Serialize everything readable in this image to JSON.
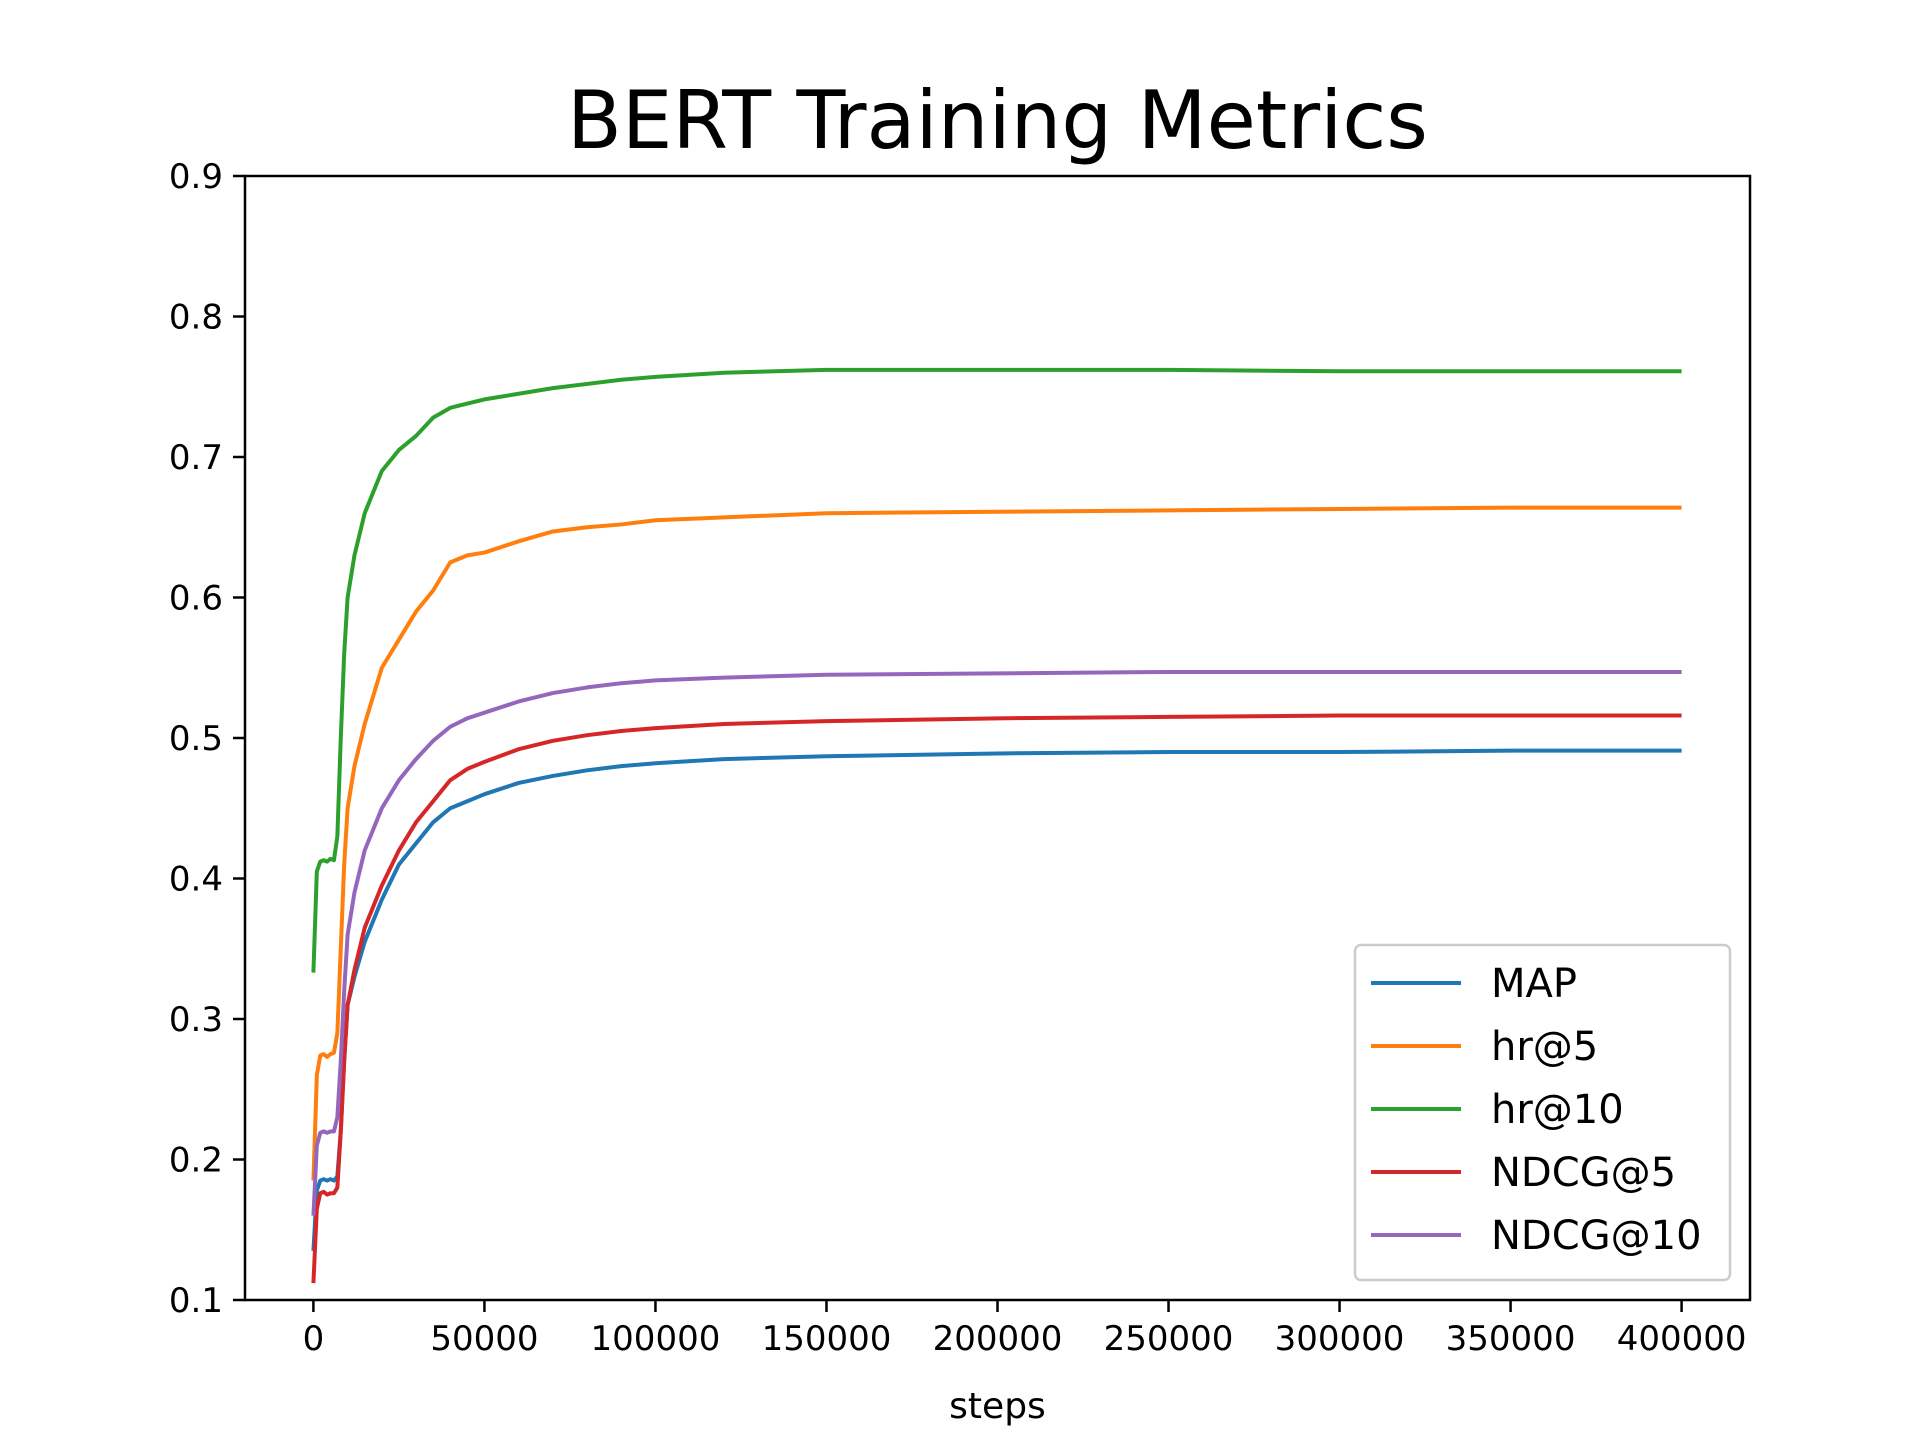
{
  "chart_data": {
    "type": "line",
    "title": "BERT Training Metrics",
    "xlabel": "steps",
    "ylabel": "",
    "xlim": [
      -20000,
      420000
    ],
    "ylim": [
      0.1,
      0.9
    ],
    "xticks": [
      0,
      50000,
      100000,
      150000,
      200000,
      250000,
      300000,
      350000,
      400000
    ],
    "yticks": [
      0.1,
      0.2,
      0.3,
      0.4,
      0.5,
      0.6,
      0.7,
      0.8,
      0.9
    ],
    "xtick_labels": [
      "0",
      "50000",
      "100000",
      "150000",
      "200000",
      "250000",
      "300000",
      "350000",
      "400000"
    ],
    "ytick_labels": [
      "0.1",
      "0.2",
      "0.3",
      "0.4",
      "0.5",
      "0.6",
      "0.7",
      "0.8",
      "0.9"
    ],
    "grid": false,
    "legend_position": "lower-right",
    "series": [
      {
        "name": "MAP",
        "color": "#1f77b4",
        "x": [
          0,
          1000,
          2000,
          3000,
          4000,
          5000,
          6000,
          7000,
          8000,
          9000,
          10000,
          12000,
          15000,
          20000,
          25000,
          30000,
          35000,
          40000,
          45000,
          50000,
          60000,
          70000,
          80000,
          90000,
          100000,
          120000,
          150000,
          200000,
          250000,
          300000,
          350000,
          400000
        ],
        "y": [
          0.135,
          0.178,
          0.185,
          0.186,
          0.185,
          0.186,
          0.185,
          0.188,
          0.22,
          0.27,
          0.31,
          0.33,
          0.355,
          0.385,
          0.41,
          0.425,
          0.44,
          0.45,
          0.455,
          0.46,
          0.468,
          0.473,
          0.477,
          0.48,
          0.482,
          0.485,
          0.487,
          0.489,
          0.49,
          0.49,
          0.491,
          0.491
        ]
      },
      {
        "name": "hr@5",
        "color": "#ff7f0e",
        "x": [
          0,
          1000,
          2000,
          3000,
          4000,
          5000,
          6000,
          7000,
          8000,
          9000,
          10000,
          12000,
          15000,
          20000,
          25000,
          30000,
          35000,
          40000,
          45000,
          50000,
          60000,
          70000,
          80000,
          90000,
          100000,
          120000,
          150000,
          200000,
          250000,
          300000,
          350000,
          400000
        ],
        "y": [
          0.185,
          0.26,
          0.274,
          0.275,
          0.273,
          0.275,
          0.276,
          0.29,
          0.35,
          0.41,
          0.45,
          0.48,
          0.51,
          0.55,
          0.57,
          0.59,
          0.605,
          0.625,
          0.63,
          0.632,
          0.64,
          0.647,
          0.65,
          0.652,
          0.655,
          0.657,
          0.66,
          0.661,
          0.662,
          0.663,
          0.664,
          0.664
        ]
      },
      {
        "name": "hr@10",
        "color": "#2ca02c",
        "x": [
          0,
          1000,
          2000,
          3000,
          4000,
          5000,
          6000,
          7000,
          8000,
          9000,
          10000,
          12000,
          15000,
          20000,
          25000,
          30000,
          35000,
          40000,
          45000,
          50000,
          60000,
          70000,
          80000,
          90000,
          100000,
          120000,
          150000,
          200000,
          250000,
          300000,
          350000,
          400000
        ],
        "y": [
          0.333,
          0.405,
          0.412,
          0.413,
          0.412,
          0.414,
          0.413,
          0.43,
          0.5,
          0.56,
          0.6,
          0.63,
          0.66,
          0.69,
          0.705,
          0.715,
          0.728,
          0.735,
          0.738,
          0.741,
          0.745,
          0.749,
          0.752,
          0.755,
          0.757,
          0.76,
          0.762,
          0.762,
          0.762,
          0.761,
          0.761,
          0.761
        ]
      },
      {
        "name": "NDCG@5",
        "color": "#d62728",
        "x": [
          0,
          1000,
          2000,
          3000,
          4000,
          5000,
          6000,
          7000,
          8000,
          9000,
          10000,
          12000,
          15000,
          20000,
          25000,
          30000,
          35000,
          40000,
          45000,
          50000,
          60000,
          70000,
          80000,
          90000,
          100000,
          120000,
          150000,
          200000,
          250000,
          300000,
          350000,
          400000
        ],
        "y": [
          0.112,
          0.165,
          0.176,
          0.177,
          0.175,
          0.176,
          0.176,
          0.18,
          0.22,
          0.27,
          0.31,
          0.335,
          0.365,
          0.395,
          0.42,
          0.44,
          0.455,
          0.47,
          0.478,
          0.483,
          0.492,
          0.498,
          0.502,
          0.505,
          0.507,
          0.51,
          0.512,
          0.514,
          0.515,
          0.516,
          0.516,
          0.516
        ]
      },
      {
        "name": "NDCG@10",
        "color": "#9467bd",
        "x": [
          0,
          1000,
          2000,
          3000,
          4000,
          5000,
          6000,
          7000,
          8000,
          9000,
          10000,
          12000,
          15000,
          20000,
          25000,
          30000,
          35000,
          40000,
          45000,
          50000,
          60000,
          70000,
          80000,
          90000,
          100000,
          120000,
          150000,
          200000,
          250000,
          300000,
          350000,
          400000
        ],
        "y": [
          0.16,
          0.21,
          0.219,
          0.22,
          0.219,
          0.22,
          0.22,
          0.23,
          0.27,
          0.32,
          0.36,
          0.39,
          0.42,
          0.45,
          0.47,
          0.485,
          0.498,
          0.508,
          0.514,
          0.518,
          0.526,
          0.532,
          0.536,
          0.539,
          0.541,
          0.543,
          0.545,
          0.546,
          0.547,
          0.547,
          0.547,
          0.547
        ]
      }
    ]
  }
}
